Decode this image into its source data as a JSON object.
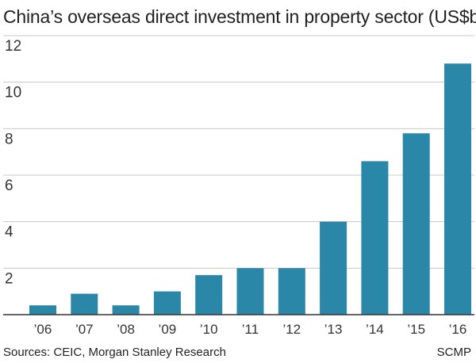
{
  "chart_data": {
    "type": "bar",
    "title": "China’s overseas direct investment in property sector (US$b)",
    "categories": [
      "’06",
      "’07",
      "’08",
      "’09",
      "’10",
      "’11",
      "’12",
      "’13",
      "’14",
      "’15",
      "’16"
    ],
    "values": [
      0.4,
      0.9,
      0.4,
      1.0,
      1.7,
      2.0,
      2.0,
      4.0,
      6.6,
      7.8,
      10.8
    ],
    "xlabel": "",
    "ylabel": "",
    "ylim": [
      0,
      12
    ],
    "yticks": [
      2,
      4,
      6,
      8,
      10,
      12
    ],
    "grid": true,
    "bar_color": "#2a87a8",
    "grid_color": "#c8c8c8",
    "axis_color": "#333333"
  },
  "footer": {
    "source": "Sources: CEIC, Morgan Stanley Research",
    "credit": "SCMP"
  }
}
